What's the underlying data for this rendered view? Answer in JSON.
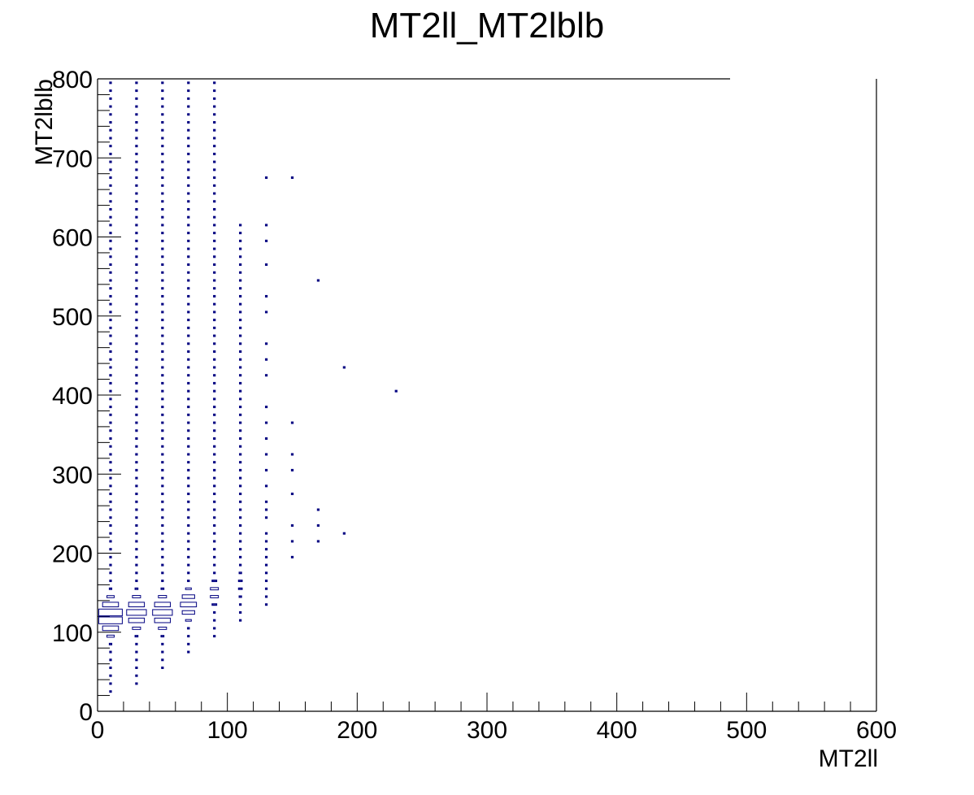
{
  "chart_data": {
    "type": "heatmap",
    "style": "box",
    "title": "MT2ll_MT2lblb",
    "xlabel": "MT2ll",
    "ylabel": "MT2lblb",
    "xlim": [
      0,
      600
    ],
    "ylim": [
      0,
      800
    ],
    "xticks": [
      "0",
      "100",
      "200",
      "300",
      "400",
      "500",
      "600"
    ],
    "yticks": [
      "0",
      "100",
      "200",
      "300",
      "400",
      "500",
      "600",
      "700",
      "800"
    ],
    "bin_width_x": 20,
    "bin_width_y": 10,
    "box_color": "#000080",
    "frame_color": "#000000",
    "columns": [
      {
        "x": 10,
        "y_range": [
          25,
          795
        ],
        "peak": 120,
        "spread": 16,
        "max_w": 1.0
      },
      {
        "x": 30,
        "y_range": [
          35,
          795
        ],
        "peak": 125,
        "spread": 15,
        "max_w": 0.8
      },
      {
        "x": 50,
        "y_range": [
          55,
          795
        ],
        "peak": 125,
        "spread": 15,
        "max_w": 0.8
      },
      {
        "x": 70,
        "y_range": [
          75,
          795
        ],
        "peak": 135,
        "spread": 14,
        "max_w": 0.65
      },
      {
        "x": 90,
        "y_range": [
          95,
          795
        ],
        "peak": 150,
        "spread": 13,
        "max_w": 0.35
      },
      {
        "x": 110,
        "y_range": [
          115,
          615
        ],
        "peak": 160,
        "spread": 15,
        "max_w": 0.15
      }
    ],
    "points": [
      [
        130,
        135
      ],
      [
        130,
        145
      ],
      [
        130,
        155
      ],
      [
        130,
        165
      ],
      [
        130,
        175
      ],
      [
        130,
        185
      ],
      [
        130,
        195
      ],
      [
        130,
        205
      ],
      [
        130,
        215
      ],
      [
        130,
        225
      ],
      [
        130,
        245
      ],
      [
        130,
        255
      ],
      [
        130,
        265
      ],
      [
        130,
        285
      ],
      [
        130,
        305
      ],
      [
        130,
        325
      ],
      [
        130,
        345
      ],
      [
        130,
        365
      ],
      [
        130,
        385
      ],
      [
        130,
        425
      ],
      [
        130,
        445
      ],
      [
        130,
        465
      ],
      [
        130,
        505
      ],
      [
        130,
        525
      ],
      [
        130,
        565
      ],
      [
        130,
        595
      ],
      [
        130,
        615
      ],
      [
        130,
        675
      ],
      [
        150,
        195
      ],
      [
        150,
        215
      ],
      [
        150,
        235
      ],
      [
        150,
        275
      ],
      [
        150,
        305
      ],
      [
        150,
        325
      ],
      [
        150,
        365
      ],
      [
        150,
        675
      ],
      [
        170,
        215
      ],
      [
        170,
        235
      ],
      [
        170,
        255
      ],
      [
        170,
        545
      ],
      [
        190,
        225
      ],
      [
        190,
        435
      ],
      [
        230,
        405
      ]
    ]
  }
}
